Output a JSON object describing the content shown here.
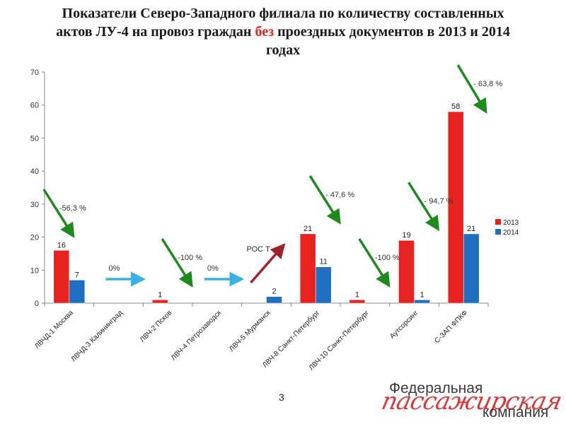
{
  "title": {
    "before": "Показатели Северо-Западного филиала по количеству составленных актов ЛУ-4 на провоз граждан ",
    "highlight": "без",
    "after": " проездных документов в 2013 и 2014 годах"
  },
  "page_number": "3",
  "logo": {
    "line1": "Федеральная",
    "script": "пассажирская",
    "line2": "компания"
  },
  "colors": {
    "series_2013": "#e8231f",
    "series_2014": "#1f6fc0",
    "arrow_green": "#1d8a1d",
    "arrow_blue": "#3ab0e6",
    "arrow_red": "#a0222a"
  },
  "chart_data": {
    "type": "bar",
    "categories": [
      "ЛВЧД-1 Москва",
      "ЛВЧД-3 Калининград",
      "ЛВЧ-2 Псков",
      "ЛВЧ-4 Петрозаводск",
      "ЛВЧ-5 Мурманск",
      "ЛВЧ-8 Санкт-Петербург",
      "ЛВЧ-10 Санкт-Петербург",
      "Аутсорсинг",
      "С-ЗАП ФПКФ"
    ],
    "series": [
      {
        "name": "2013",
        "values": [
          16,
          0,
          1,
          0,
          0,
          21,
          1,
          19,
          58
        ]
      },
      {
        "name": "2014",
        "values": [
          7,
          0,
          0,
          0,
          2,
          11,
          0,
          1,
          21
        ]
      }
    ],
    "ylim": [
      0,
      70
    ],
    "yticks": [
      0,
      10,
      20,
      30,
      40,
      50,
      60,
      70
    ],
    "grid": false,
    "legend_placement": "right",
    "annotations": [
      {
        "category": "ЛВЧД-1 Москва",
        "text": "-56,3 %",
        "arrow": "down-green"
      },
      {
        "category": "ЛВЧД-3 Калининград",
        "text": "0%",
        "arrow": "right-blue"
      },
      {
        "category": "ЛВЧ-2 Псков",
        "text": "-100 %",
        "arrow": "down-green"
      },
      {
        "category": "ЛВЧ-4 Петрозаводск",
        "text": "0%",
        "arrow": "right-blue"
      },
      {
        "category": "ЛВЧ-5 Мурманск",
        "text": "РОС Т",
        "arrow": "up-red"
      },
      {
        "category": "ЛВЧ-8 Санкт-Петербург",
        "text": "- 47,6 %",
        "arrow": "down-green"
      },
      {
        "category": "ЛВЧ-10 Санкт-Петербург",
        "text": "-100 %",
        "arrow": "down-green"
      },
      {
        "category": "Аутсорсинг",
        "text": "- 94,7 %",
        "arrow": "down-green"
      },
      {
        "category": "С-ЗАП ФПКФ",
        "text": "- 63,8 %",
        "arrow": "down-green"
      }
    ]
  }
}
